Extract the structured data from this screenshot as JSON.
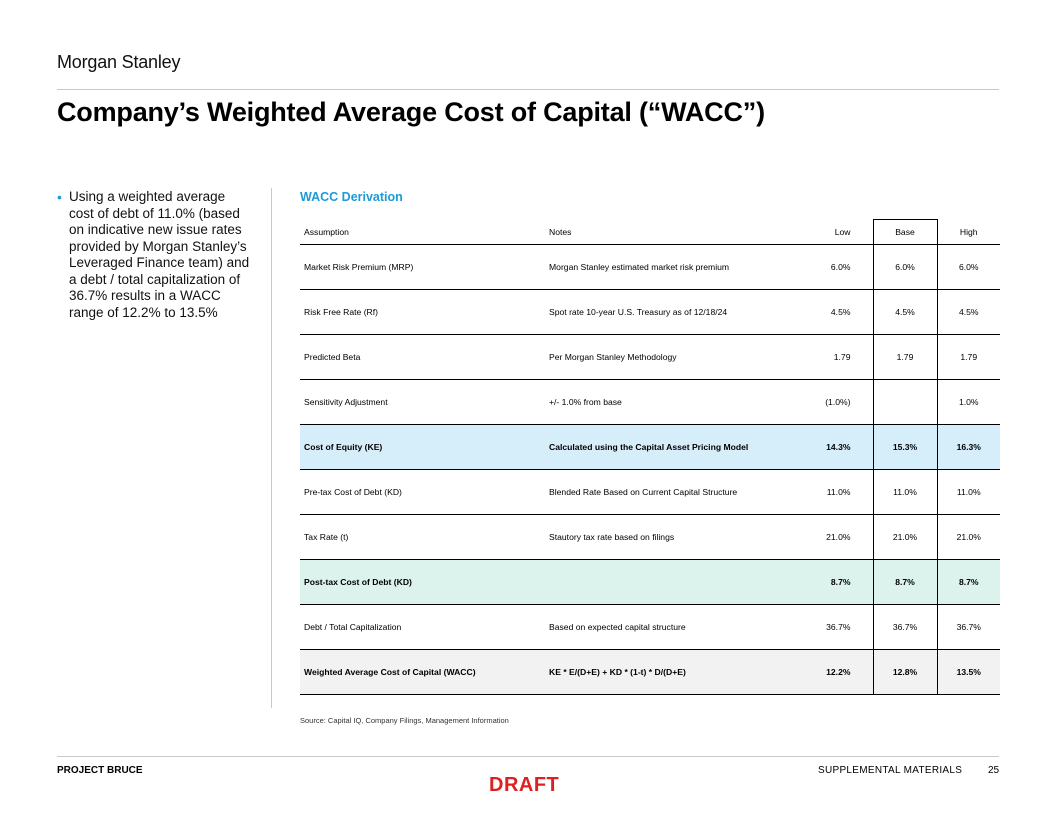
{
  "header": {
    "logo": "Morgan Stanley",
    "title": "Company’s Weighted Average Cost of Capital (“WACC”)"
  },
  "bullet": {
    "text": "Using a weighted average cost of debt of 11.0% (based on indicative new issue rates provided by Morgan Stanley’s Leveraged Finance team) and a debt / total capitalization of 36.7% results in a WACC range of 12.2% to 13.5%"
  },
  "table": {
    "section_title": "WACC Derivation",
    "headers": [
      "Assumption",
      "Notes",
      "Low",
      "Base",
      "High"
    ],
    "rows": [
      {
        "assumption": "Market Risk Premium (MRP)",
        "notes": "Morgan Stanley estimated market risk premium",
        "low": "6.0%",
        "base": "6.0%",
        "high": "6.0%"
      },
      {
        "assumption": "Risk Free Rate (Rf)",
        "notes": "Spot rate 10-year U.S. Treasury as of 12/18/24",
        "low": "4.5%",
        "base": "4.5%",
        "high": "4.5%"
      },
      {
        "assumption": "Predicted Beta",
        "notes": "Per Morgan Stanley Methodology",
        "low": "1.79",
        "base": "1.79",
        "high": "1.79"
      },
      {
        "assumption": "Sensitivity Adjustment",
        "notes": "+/- 1.0% from base",
        "low": "(1.0%)",
        "base": "",
        "high": "1.0%"
      },
      {
        "assumption": "Cost of Equity (KE)",
        "notes": "Calculated using the Capital Asset Pricing Model",
        "low": "14.3%",
        "base": "15.3%",
        "high": "16.3%"
      },
      {
        "assumption": "Pre-tax Cost of Debt (KD)",
        "notes": "Blended Rate Based on Current Capital Structure",
        "low": "11.0%",
        "base": "11.0%",
        "high": "11.0%"
      },
      {
        "assumption": "Tax Rate (t)",
        "notes": "Stautory tax rate based on filings",
        "low": "21.0%",
        "base": "21.0%",
        "high": "21.0%"
      },
      {
        "assumption": "Post-tax Cost of Debt (KD)",
        "notes": "",
        "low": "8.7%",
        "base": "8.7%",
        "high": "8.7%"
      },
      {
        "assumption": "Debt / Total Capitalization",
        "notes": "Based on expected capital structure",
        "low": "36.7%",
        "base": "36.7%",
        "high": "36.7%"
      },
      {
        "assumption": "Weighted Average Cost of Capital (WACC)",
        "notes": "KE * E/(D+E) + KD * (1-t) * D/(D+E)",
        "low": "12.2%",
        "base": "12.8%",
        "high": "13.5%"
      }
    ],
    "source": "Source: Capital IQ, Company Filings, Management Information"
  },
  "colors": {
    "accent": "#1e9ad6",
    "cost_of_equity_fill": "#d6edfa",
    "post_tax_fill": "#dcf2ec",
    "wacc_fill": "#f2f2f2",
    "draft": "#e02020"
  },
  "footer": {
    "project": "PROJECT BRUCE",
    "section": "SUPPLEMENTAL MATERIALS",
    "page": "25",
    "draft_label": "DRAFT"
  }
}
